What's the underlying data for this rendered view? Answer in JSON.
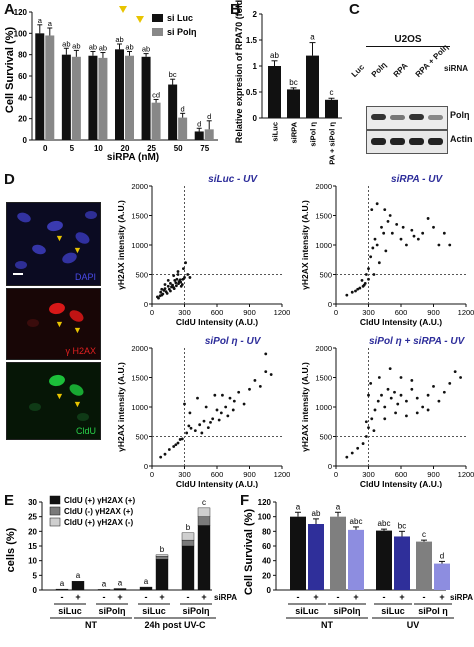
{
  "panels": {
    "A": "A",
    "B": "B",
    "C": "C",
    "D": "D",
    "E": "E",
    "F": "F"
  },
  "panelA": {
    "ylabel": "Cell Survival (%)",
    "xlabel": "siRPA (nM)",
    "legend": [
      "si Luc",
      "si Polη"
    ],
    "yticks": [
      "0",
      "20",
      "40",
      "60",
      "80",
      "100",
      "120"
    ]
  },
  "panelB": {
    "ylabel": "Relative expresion of RPA70 (fold)",
    "yticks": [
      "0",
      "0.5",
      "1",
      "1.5",
      "2"
    ]
  },
  "panelC": {
    "header": "U2OS",
    "lanes": [
      "Luc",
      "Polη",
      "RPA",
      "RPA + Polη"
    ],
    "lane_title": "siRNA",
    "bands": [
      "Polη",
      "Actin"
    ]
  },
  "panelD": {
    "micro_labels": [
      "DAPI",
      "γ H2AX",
      "CldU"
    ],
    "xlabel": "CldU Intensity (A.U.)",
    "ylabel": "γH2AX intensity (A.U.)",
    "xticks": [
      "0",
      "300",
      "600",
      "900",
      "1200"
    ],
    "yticks": [
      "0",
      "500",
      "1000",
      "1500",
      "2000"
    ],
    "titles": [
      "siLuc - UV",
      "siRPA - UV",
      "siPol η - UV",
      "siPol η + siRPA - UV"
    ]
  },
  "panelE": {
    "ylabel": "cells (%)",
    "yticks": [
      "0",
      "5",
      "10",
      "15",
      "20",
      "25",
      "30"
    ],
    "legend": [
      "CldU (+) γH2AX (+)",
      "CldU (-) γH2AX (+)",
      "CldU (+) γH2AX (-)"
    ],
    "signs": [
      "-",
      "+",
      "-",
      "+",
      "-",
      "+",
      "-",
      "+"
    ],
    "sirpa": "siRPA",
    "groups": [
      "siLuc",
      "siPolη",
      "siLuc",
      "siPolη"
    ],
    "supergroups": [
      "NT",
      "24h post UV-C"
    ]
  },
  "panelF": {
    "ylabel": "Cell Survival (%)",
    "yticks": [
      "0",
      "20",
      "40",
      "60",
      "80",
      "100",
      "120"
    ],
    "signs": [
      "-",
      "+",
      "-",
      "+",
      "-",
      "+",
      "-",
      "+"
    ],
    "sirpa": "siRPA",
    "groups": [
      "siLuc",
      "siPolη",
      "siLuc",
      "siPol η"
    ],
    "supergroups": [
      "NT",
      "UV"
    ]
  },
  "chart_data": [
    {
      "type": "bar",
      "title": "",
      "xlabel": "siRPA (nM)",
      "ylabel": "Cell Survival (%)",
      "ylim": [
        0,
        120
      ],
      "categories": [
        "0",
        "5",
        "10",
        "20",
        "25",
        "50",
        "75"
      ],
      "series": [
        {
          "name": "si Luc",
          "values": [
            100,
            80,
            79,
            85,
            78,
            52,
            8
          ]
        },
        {
          "name": "si Polη",
          "values": [
            98,
            78,
            77,
            79,
            35,
            21,
            10
          ]
        }
      ],
      "errors": [
        [
          8,
          6,
          4,
          5,
          3,
          5,
          3
        ],
        [
          7,
          6,
          5,
          4,
          3,
          4,
          8
        ]
      ],
      "letters": [
        [
          "a",
          "ab",
          "ab",
          "ab",
          "ab",
          "bc",
          "d"
        ],
        [
          "a",
          "ab",
          "ab",
          "ab",
          "cd",
          "d",
          "d"
        ]
      ]
    },
    {
      "type": "bar",
      "title": "",
      "xlabel": "",
      "ylabel": "Relative expresion of RPA70 (fold)",
      "ylim": [
        0,
        2
      ],
      "categories": [
        "siLuc",
        "siRPA",
        "siPol η",
        "siRPA + siPol η"
      ],
      "values": [
        1.0,
        0.55,
        1.2,
        0.35
      ],
      "errors": [
        0.1,
        0.03,
        0.25,
        0.03
      ],
      "letters": [
        "ab",
        "bc",
        "a",
        "c"
      ]
    },
    {
      "type": "scatter",
      "title": "siLuc - UV",
      "xlabel": "CldU Intensity (A.U.)",
      "ylabel": "γH2AX intensity (A.U.)",
      "xlim": [
        0,
        1200
      ],
      "ylim": [
        0,
        2000
      ],
      "points": [
        [
          50,
          120
        ],
        [
          80,
          200
        ],
        [
          120,
          260
        ],
        [
          150,
          300
        ],
        [
          170,
          350
        ],
        [
          200,
          280
        ],
        [
          230,
          420
        ],
        [
          250,
          380
        ],
        [
          270,
          300
        ],
        [
          90,
          150
        ],
        [
          110,
          230
        ],
        [
          140,
          180
        ],
        [
          190,
          320
        ],
        [
          210,
          400
        ],
        [
          240,
          500
        ],
        [
          160,
          250
        ],
        [
          130,
          210
        ],
        [
          60,
          100
        ],
        [
          280,
          330
        ],
        [
          300,
          450
        ],
        [
          220,
          360
        ],
        [
          180,
          290
        ],
        [
          100,
          170
        ],
        [
          75,
          140
        ],
        [
          260,
          410
        ],
        [
          290,
          600
        ],
        [
          310,
          700
        ],
        [
          330,
          500
        ],
        [
          350,
          450
        ],
        [
          240,
          550
        ],
        [
          200,
          480
        ],
        [
          120,
          330
        ],
        [
          150,
          400
        ],
        [
          170,
          220
        ],
        [
          205,
          260
        ],
        [
          225,
          310
        ],
        [
          245,
          345
        ],
        [
          265,
          370
        ],
        [
          285,
          420
        ],
        [
          90,
          250
        ]
      ]
    },
    {
      "type": "scatter",
      "title": "siRPA - UV",
      "xlabel": "CldU Intensity (A.U.)",
      "ylabel": "γH2AX intensity (A.U.)",
      "xlim": [
        0,
        1200
      ],
      "ylim": [
        0,
        2000
      ],
      "points": [
        [
          100,
          150
        ],
        [
          150,
          200
        ],
        [
          200,
          250
        ],
        [
          250,
          300
        ],
        [
          270,
          350
        ],
        [
          300,
          600
        ],
        [
          320,
          800
        ],
        [
          340,
          950
        ],
        [
          360,
          1100
        ],
        [
          380,
          1000
        ],
        [
          400,
          700
        ],
        [
          420,
          1300
        ],
        [
          440,
          1200
        ],
        [
          460,
          900
        ],
        [
          480,
          1400
        ],
        [
          500,
          1500
        ],
        [
          520,
          1200
        ],
        [
          560,
          1350
        ],
        [
          600,
          1100
        ],
        [
          620,
          1300
        ],
        [
          650,
          1000
        ],
        [
          700,
          1250
        ],
        [
          720,
          1150
        ],
        [
          760,
          1100
        ],
        [
          800,
          1200
        ],
        [
          850,
          1450
        ],
        [
          900,
          1300
        ],
        [
          950,
          1000
        ],
        [
          1000,
          1200
        ],
        [
          1050,
          1000
        ],
        [
          180,
          220
        ],
        [
          220,
          270
        ],
        [
          260,
          320
        ],
        [
          240,
          400
        ],
        [
          280,
          500
        ],
        [
          300,
          420
        ],
        [
          330,
          1600
        ],
        [
          380,
          1700
        ],
        [
          350,
          500
        ],
        [
          450,
          1600
        ]
      ]
    },
    {
      "type": "scatter",
      "title": "siPol η - UV",
      "xlabel": "CldU Intensity (A.U.)",
      "ylabel": "γH2AX intensity (A.U.)",
      "xlim": [
        0,
        1200
      ],
      "ylim": [
        0,
        2000
      ],
      "points": [
        [
          80,
          150
        ],
        [
          120,
          200
        ],
        [
          160,
          280
        ],
        [
          200,
          330
        ],
        [
          240,
          390
        ],
        [
          280,
          460
        ],
        [
          320,
          560
        ],
        [
          360,
          640
        ],
        [
          400,
          600
        ],
        [
          440,
          700
        ],
        [
          480,
          760
        ],
        [
          520,
          650
        ],
        [
          560,
          800
        ],
        [
          600,
          950
        ],
        [
          640,
          900
        ],
        [
          680,
          1000
        ],
        [
          720,
          1150
        ],
        [
          760,
          1100
        ],
        [
          800,
          1250
        ],
        [
          850,
          1050
        ],
        [
          900,
          1300
        ],
        [
          950,
          1450
        ],
        [
          1000,
          1350
        ],
        [
          1050,
          1600
        ],
        [
          1100,
          1550
        ],
        [
          300,
          1050
        ],
        [
          350,
          900
        ],
        [
          420,
          1150
        ],
        [
          500,
          1000
        ],
        [
          580,
          1200
        ],
        [
          650,
          1200
        ],
        [
          700,
          850
        ],
        [
          750,
          950
        ],
        [
          260,
          450
        ],
        [
          220,
          360
        ],
        [
          340,
          680
        ],
        [
          460,
          560
        ],
        [
          540,
          740
        ],
        [
          620,
          780
        ],
        [
          1050,
          1900
        ]
      ]
    },
    {
      "type": "scatter",
      "title": "siPol η + siRPA - UV",
      "xlabel": "CldU Intensity (A.U.)",
      "ylabel": "γH2AX intensity (A.U.)",
      "xlim": [
        0,
        1200
      ],
      "ylim": [
        0,
        2000
      ],
      "points": [
        [
          100,
          150
        ],
        [
          150,
          220
        ],
        [
          200,
          300
        ],
        [
          250,
          380
        ],
        [
          280,
          500
        ],
        [
          300,
          650
        ],
        [
          330,
          800
        ],
        [
          360,
          950
        ],
        [
          390,
          1100
        ],
        [
          420,
          1200
        ],
        [
          450,
          1000
        ],
        [
          480,
          1300
        ],
        [
          510,
          1150
        ],
        [
          540,
          1250
        ],
        [
          570,
          1050
        ],
        [
          600,
          1200
        ],
        [
          650,
          1100
        ],
        [
          700,
          1300
        ],
        [
          750,
          1150
        ],
        [
          800,
          1000
        ],
        [
          850,
          1200
        ],
        [
          900,
          1350
        ],
        [
          950,
          1100
        ],
        [
          1000,
          1250
        ],
        [
          1050,
          1400
        ],
        [
          1100,
          1600
        ],
        [
          1150,
          1500
        ],
        [
          320,
          1400
        ],
        [
          400,
          1500
        ],
        [
          500,
          1650
        ],
        [
          600,
          1500
        ],
        [
          700,
          1450
        ],
        [
          280,
          750
        ],
        [
          350,
          600
        ],
        [
          450,
          800
        ],
        [
          550,
          900
        ],
        [
          650,
          850
        ],
        [
          750,
          900
        ],
        [
          850,
          950
        ],
        [
          300,
          1200
        ]
      ]
    },
    {
      "type": "bar",
      "title": "",
      "xlabel": "",
      "ylabel": "cells (%)",
      "ylim": [
        0,
        30
      ],
      "categories": [
        "NT siLuc -",
        "NT siLuc +",
        "NT siPolη -",
        "NT siPolη +",
        "UV siLuc -",
        "UV siLuc +",
        "UV siPolη -",
        "UV siPolη +"
      ],
      "series": [
        {
          "name": "CldU (+) γH2AX (+)",
          "values": [
            0.3,
            3,
            0.2,
            0.5,
            1,
            10.5,
            15,
            22
          ]
        },
        {
          "name": "CldU (-) γH2AX (+)",
          "values": [
            0,
            0,
            0,
            0,
            0,
            1,
            2,
            3
          ]
        },
        {
          "name": "CldU (+) γH2AX (-)",
          "values": [
            0,
            0,
            0,
            0,
            0,
            0.5,
            2.5,
            3
          ]
        }
      ],
      "letters": [
        "a",
        "a",
        "a",
        "a",
        "a",
        "b",
        "b",
        "c"
      ]
    },
    {
      "type": "bar",
      "title": "",
      "xlabel": "",
      "ylabel": "Cell Survival (%)",
      "ylim": [
        0,
        120
      ],
      "categories": [
        "NT siLuc -",
        "NT siLuc +",
        "NT siPolη -",
        "NT siPolη +",
        "UV siLuc -",
        "UV siLuc +",
        "UV siPol η -",
        "UV siPol η +"
      ],
      "values": [
        100,
        90,
        100,
        82,
        81,
        73,
        66,
        36
      ],
      "errors": [
        6,
        7,
        6,
        4,
        2,
        7,
        2,
        3
      ],
      "colors": [
        "#111111",
        "#2f2f9a",
        "#7f7f7f",
        "#8d8de0",
        "#111111",
        "#2f2f9a",
        "#7f7f7f",
        "#8d8de0"
      ],
      "letters": [
        "a",
        "ab",
        "a",
        "abc",
        "abc",
        "bc",
        "c",
        "d"
      ]
    }
  ]
}
